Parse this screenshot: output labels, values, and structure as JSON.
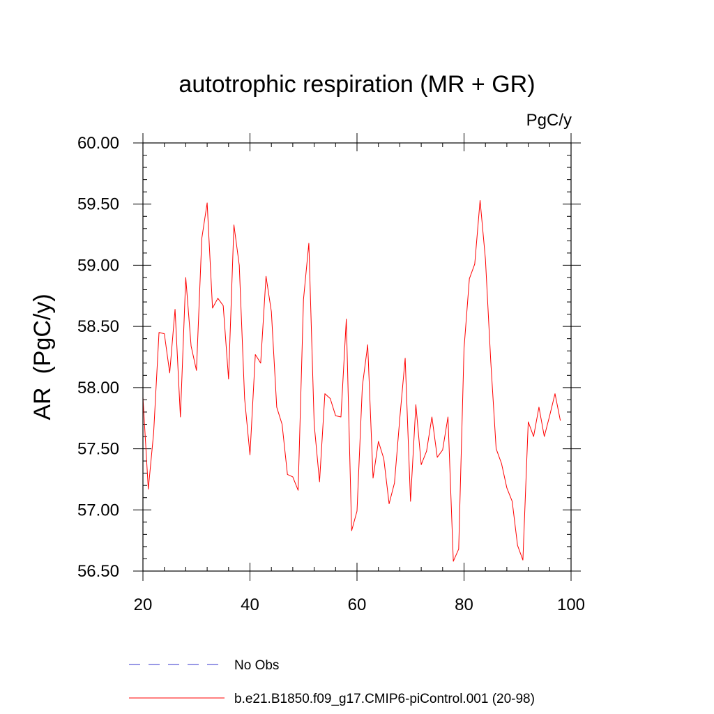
{
  "chart_data": {
    "type": "line",
    "title": "autotrophic respiration (MR + GR)",
    "units": "PgC/y",
    "ylabel": "AR  (PgC/y)",
    "xlabel": "",
    "xlim": [
      20,
      100
    ],
    "ylim": [
      56.5,
      60.0
    ],
    "xticks": [
      20,
      40,
      60,
      80,
      100
    ],
    "xtick_labels": [
      "20",
      "40",
      "60",
      "80",
      "100"
    ],
    "yticks": [
      56.5,
      57.0,
      57.5,
      58.0,
      58.5,
      59.0,
      59.5,
      60.0
    ],
    "ytick_labels": [
      "56.50",
      "57.00",
      "57.50",
      "58.00",
      "58.50",
      "59.00",
      "59.50",
      "60.00"
    ],
    "grid": false,
    "legend": [
      {
        "label": "No Obs",
        "color": "#3333cc",
        "style": "dashed"
      },
      {
        "label": "b.e21.B1850.f09_g17.CMIP6-piControl.001 (20-98)",
        "color": "#ff0000",
        "style": "solid"
      }
    ],
    "series": [
      {
        "name": "b.e21.B1850.f09_g17.CMIP6-piControl.001 (20-98)",
        "color": "#ff0000",
        "x": [
          20,
          21,
          22,
          23,
          24,
          25,
          26,
          27,
          28,
          29,
          30,
          31,
          32,
          33,
          34,
          35,
          36,
          37,
          38,
          39,
          40,
          41,
          42,
          43,
          44,
          45,
          46,
          47,
          48,
          49,
          50,
          51,
          52,
          53,
          54,
          55,
          56,
          57,
          58,
          59,
          60,
          61,
          62,
          63,
          64,
          65,
          66,
          67,
          68,
          69,
          70,
          71,
          72,
          73,
          74,
          75,
          76,
          77,
          78,
          79,
          80,
          81,
          82,
          83,
          84,
          85,
          86,
          87,
          88,
          89,
          90,
          91,
          92,
          93,
          94,
          95,
          96,
          97,
          98
        ],
        "values": [
          57.92,
          57.17,
          57.63,
          58.45,
          58.44,
          58.12,
          58.64,
          57.76,
          58.9,
          58.34,
          58.14,
          59.22,
          59.51,
          58.65,
          58.73,
          58.67,
          58.07,
          59.33,
          59.0,
          57.91,
          57.45,
          58.27,
          58.2,
          58.91,
          58.62,
          57.84,
          57.7,
          57.29,
          57.27,
          57.16,
          58.72,
          59.18,
          57.7,
          57.23,
          57.95,
          57.91,
          57.77,
          57.76,
          58.56,
          56.83,
          56.99,
          58.01,
          58.35,
          57.26,
          57.56,
          57.42,
          57.05,
          57.22,
          57.75,
          58.24,
          57.07,
          57.86,
          57.37,
          57.48,
          57.76,
          57.43,
          57.49,
          57.76,
          56.58,
          56.68,
          58.32,
          58.89,
          59.01,
          59.53,
          59.05,
          58.21,
          57.5,
          57.38,
          57.18,
          57.07,
          56.71,
          56.59,
          57.72,
          57.6,
          57.84,
          57.6,
          57.77,
          57.95,
          57.73
        ]
      }
    ]
  }
}
